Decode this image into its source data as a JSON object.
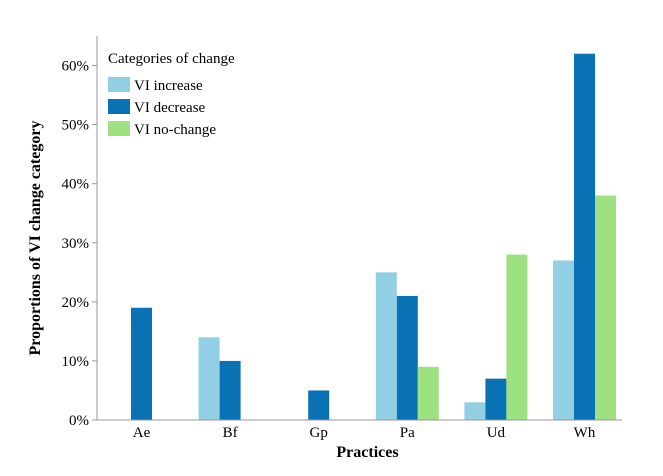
{
  "chart_data": {
    "type": "bar",
    "title": "",
    "xlabel": "Practices",
    "ylabel": "Proportions of VI change category",
    "categories": [
      "Ae",
      "Bf",
      "Gp",
      "Pa",
      "Ud",
      "Wh"
    ],
    "series": [
      {
        "name": "VI increase",
        "color": "#92cfe4",
        "values": [
          0,
          14,
          0,
          25,
          3,
          27
        ]
      },
      {
        "name": "VI decrease",
        "color": "#0a72b4",
        "values": [
          19,
          10,
          5,
          21,
          7,
          62
        ]
      },
      {
        "name": "VI no-change",
        "color": "#9ee183",
        "values": [
          0,
          0,
          0,
          9,
          28,
          38
        ]
      }
    ],
    "ylim": [
      0,
      65
    ],
    "yticks": [
      0,
      10,
      20,
      30,
      40,
      50,
      60
    ],
    "ytick_labels": [
      "0%",
      "10%",
      "20%",
      "30%",
      "40%",
      "50%",
      "60%"
    ],
    "legend": {
      "title": "Categories of change",
      "position": "top-left"
    },
    "grid": false
  }
}
